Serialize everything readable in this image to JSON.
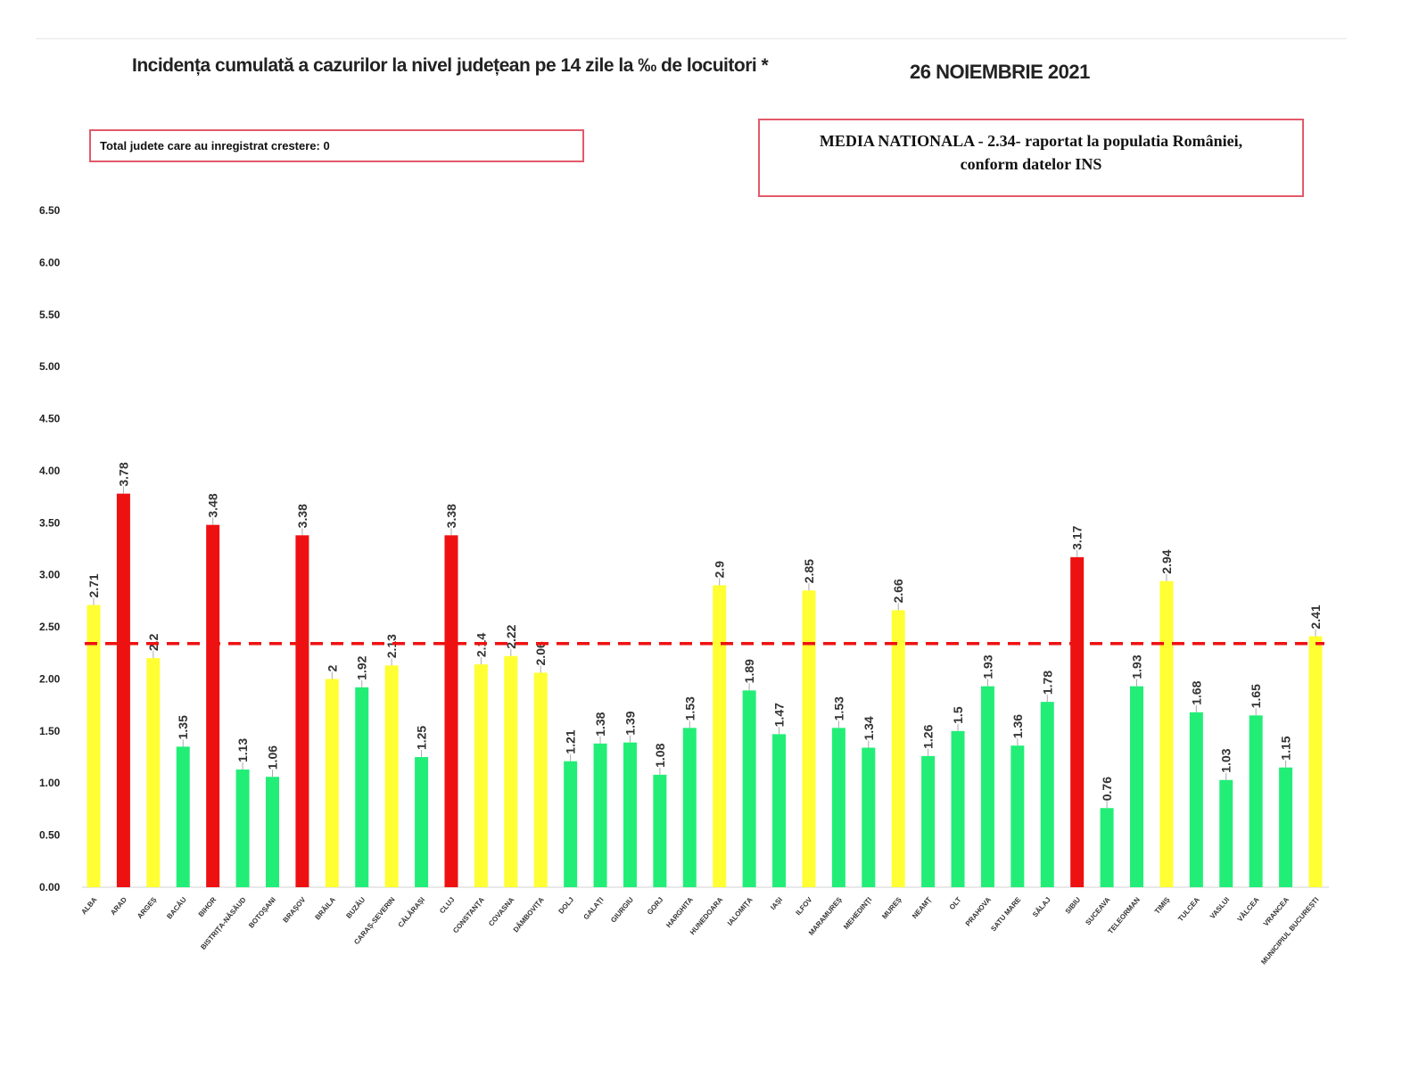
{
  "chart_data": {
    "type": "bar",
    "title": "Incidența cumulată a cazurilor la nivel județean pe 14 zile la ‰ de locuitori *",
    "date": "26 NOIEMBRIE 2021",
    "note": "Total judete care au inregistrat crestere: 0",
    "national_average_text": [
      "MEDIA NATIONALA - 2.34-  raportat la populatia României,",
      "conform datelor INS"
    ],
    "national_average": 2.34,
    "ylim": [
      0,
      6.5
    ],
    "yticks": [
      "0.00",
      "0.50",
      "1.00",
      "1.50",
      "2.00",
      "2.50",
      "3.00",
      "3.50",
      "4.00",
      "4.50",
      "5.00",
      "5.50",
      "6.00",
      "6.50"
    ],
    "categories": [
      "ALBA",
      "ARAD",
      "ARGEȘ",
      "BACĂU",
      "BIHOR",
      "BISTRIȚA-NĂSĂUD",
      "BOTOȘANI",
      "BRAȘOV",
      "BRĂILA",
      "BUZĂU",
      "CARAȘ-SEVERIN",
      "CĂLĂRAȘI",
      "CLUJ",
      "CONSTANȚA",
      "COVASNA",
      "DÂMBOVIȚA",
      "DOLJ",
      "GALAȚI",
      "GIURGIU",
      "GORJ",
      "HARGHITA",
      "HUNEDOARA",
      "IALOMIȚA",
      "IAȘI",
      "ILFOV",
      "MARAMUREȘ",
      "MEHEDINȚI",
      "MUREȘ",
      "NEAMȚ",
      "OLT",
      "PRAHOVA",
      "SATU MARE",
      "SĂLAJ",
      "SIBIU",
      "SUCEAVA",
      "TELEORMAN",
      "TIMIȘ",
      "TULCEA",
      "VASLUI",
      "VÂLCEA",
      "VRANCEA",
      "MUNICIPIUL BUCUREȘTI"
    ],
    "values": [
      2.71,
      3.78,
      2.2,
      1.35,
      3.48,
      1.13,
      1.06,
      3.38,
      2,
      1.92,
      2.13,
      1.25,
      3.38,
      2.14,
      2.22,
      2.06,
      1.21,
      1.38,
      1.39,
      1.08,
      1.53,
      2.9,
      1.89,
      1.47,
      2.85,
      1.53,
      1.34,
      2.66,
      1.26,
      1.5,
      1.93,
      1.36,
      1.78,
      3.17,
      0.76,
      1.93,
      2.94,
      1.68,
      1.03,
      1.65,
      1.15,
      2.41
    ],
    "colors": {
      "high": "#ee1111",
      "medium": "#ffff33",
      "low": "#22ee77",
      "average_line": "#ee1111"
    },
    "thresholds": {
      "high_above": 3,
      "medium_above": 2
    }
  }
}
